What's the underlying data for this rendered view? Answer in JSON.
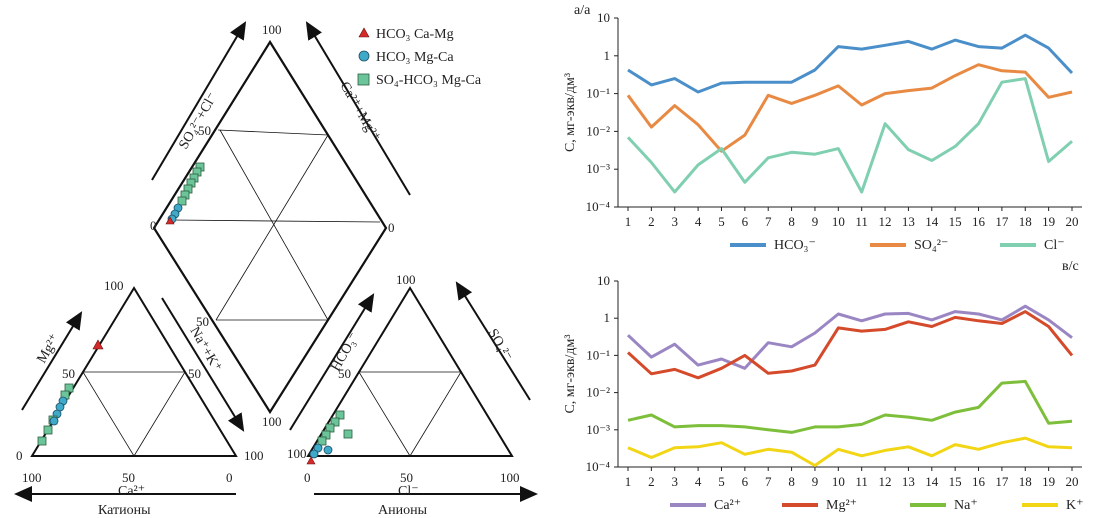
{
  "piper": {
    "legend": [
      {
        "name": "HCO₃ Ca-Mg",
        "marker": "triangle",
        "color": "#d42a2a"
      },
      {
        "name": "HCO₃ Mg-Ca",
        "marker": "circle",
        "color": "#3fa9c9"
      },
      {
        "name": "SO₄-HCO₃ Mg-Ca",
        "marker": "square",
        "color": "#6cc49a"
      }
    ],
    "diamond": {
      "left_axis": "SO₄²⁻+Cl⁻",
      "right_axis": "Ca²⁺+Mg²⁺",
      "ticks": {
        "top": "100",
        "upper_left": "50",
        "left": "0",
        "right": "0",
        "lower_right": "50",
        "bottom": "100"
      }
    },
    "cations": {
      "caption": "Катионы",
      "bottom_axis": "Ca²⁺",
      "left_axis": "Mg²⁺",
      "right_axis": "Na⁺+K⁺",
      "ticks": {
        "apex": "100",
        "left_mid": "50",
        "right_mid": "50",
        "left_base": "0",
        "right_base": "100",
        "bottom_left": "100",
        "bottom_mid": "50",
        "bottom_right": "0"
      }
    },
    "anions": {
      "caption": "Анионы",
      "bottom_axis": "Cl⁻",
      "left_axis": "HCO₃⁻",
      "right_axis": "SO₄²⁻",
      "ticks": {
        "apex": "100",
        "left_mid": "50",
        "left_base": "100",
        "bottom_left": "0",
        "bottom_mid": "50",
        "bottom_right": "100"
      }
    }
  },
  "chart_data": [
    {
      "type": "line",
      "panel_label": "a/a",
      "ylabel": "C, мг-экв/дм³",
      "yscale": "log",
      "ylim": [
        0.0001,
        10
      ],
      "y_ticks": [
        "10",
        "1",
        "10⁻¹",
        "10⁻²",
        "10⁻³",
        "10⁻⁴"
      ],
      "x": [
        1,
        2,
        3,
        4,
        5,
        6,
        7,
        8,
        9,
        10,
        11,
        12,
        13,
        14,
        15,
        16,
        17,
        18,
        19,
        20
      ],
      "series": [
        {
          "name": "HCO₃⁻",
          "color": "#4a8fc9",
          "values": [
            0.42,
            0.17,
            0.25,
            0.11,
            0.19,
            0.2,
            0.2,
            0.2,
            0.42,
            1.75,
            1.5,
            1.9,
            2.4,
            1.5,
            2.6,
            1.75,
            1.6,
            3.5,
            1.6,
            0.35
          ]
        },
        {
          "name": "SO₄²⁻",
          "color": "#e88a44",
          "values": [
            0.09,
            0.013,
            0.048,
            0.015,
            0.003,
            0.008,
            0.09,
            0.055,
            0.09,
            0.16,
            0.05,
            0.1,
            0.12,
            0.14,
            0.3,
            0.58,
            0.4,
            0.37,
            0.08,
            0.11
          ]
        },
        {
          "name": "Cl⁻",
          "color": "#7fcfb0",
          "values": [
            0.007,
            0.0015,
            0.00025,
            0.0013,
            0.0035,
            0.00045,
            0.002,
            0.0028,
            0.0025,
            0.0035,
            0.00025,
            0.016,
            0.0033,
            0.0017,
            0.004,
            0.016,
            0.2,
            0.25,
            0.0016,
            0.0055
          ]
        }
      ]
    },
    {
      "type": "line",
      "panel_label": "в/с",
      "ylabel": "C, мг-экв/дм³",
      "yscale": "log",
      "ylim": [
        0.0001,
        10
      ],
      "y_ticks": [
        "10",
        "1",
        "10⁻¹",
        "10⁻²",
        "10⁻³",
        "10⁻⁴"
      ],
      "x": [
        1,
        2,
        3,
        4,
        5,
        6,
        7,
        8,
        9,
        10,
        11,
        12,
        13,
        14,
        15,
        16,
        17,
        18,
        19,
        20
      ],
      "series": [
        {
          "name": "Ca²⁺",
          "color": "#9b86c4",
          "values": [
            0.35,
            0.09,
            0.2,
            0.055,
            0.08,
            0.045,
            0.22,
            0.17,
            0.4,
            1.3,
            0.85,
            1.3,
            1.35,
            0.9,
            1.5,
            1.3,
            0.9,
            2.1,
            0.9,
            0.3
          ]
        },
        {
          "name": "Mg²⁺",
          "color": "#d44a2a",
          "values": [
            0.12,
            0.032,
            0.042,
            0.025,
            0.045,
            0.1,
            0.033,
            0.038,
            0.055,
            0.55,
            0.45,
            0.5,
            0.8,
            0.6,
            1.05,
            0.85,
            0.72,
            1.5,
            0.6,
            0.1
          ]
        },
        {
          "name": "Na⁺",
          "color": "#7dbf3a",
          "values": [
            0.0018,
            0.0025,
            0.0012,
            0.0013,
            0.0013,
            0.0012,
            0.001,
            0.00085,
            0.0012,
            0.0012,
            0.0014,
            0.0025,
            0.0022,
            0.0018,
            0.003,
            0.004,
            0.018,
            0.02,
            0.0015,
            0.0017
          ]
        },
        {
          "name": "K⁺",
          "color": "#f2d616",
          "values": [
            0.00033,
            0.00018,
            0.00033,
            0.00035,
            0.00045,
            0.00022,
            0.0003,
            0.00025,
            0.00011,
            0.0003,
            0.0002,
            0.00028,
            0.00035,
            0.0002,
            0.0004,
            0.0003,
            0.00045,
            0.0006,
            0.00035,
            0.00033
          ]
        }
      ]
    }
  ]
}
